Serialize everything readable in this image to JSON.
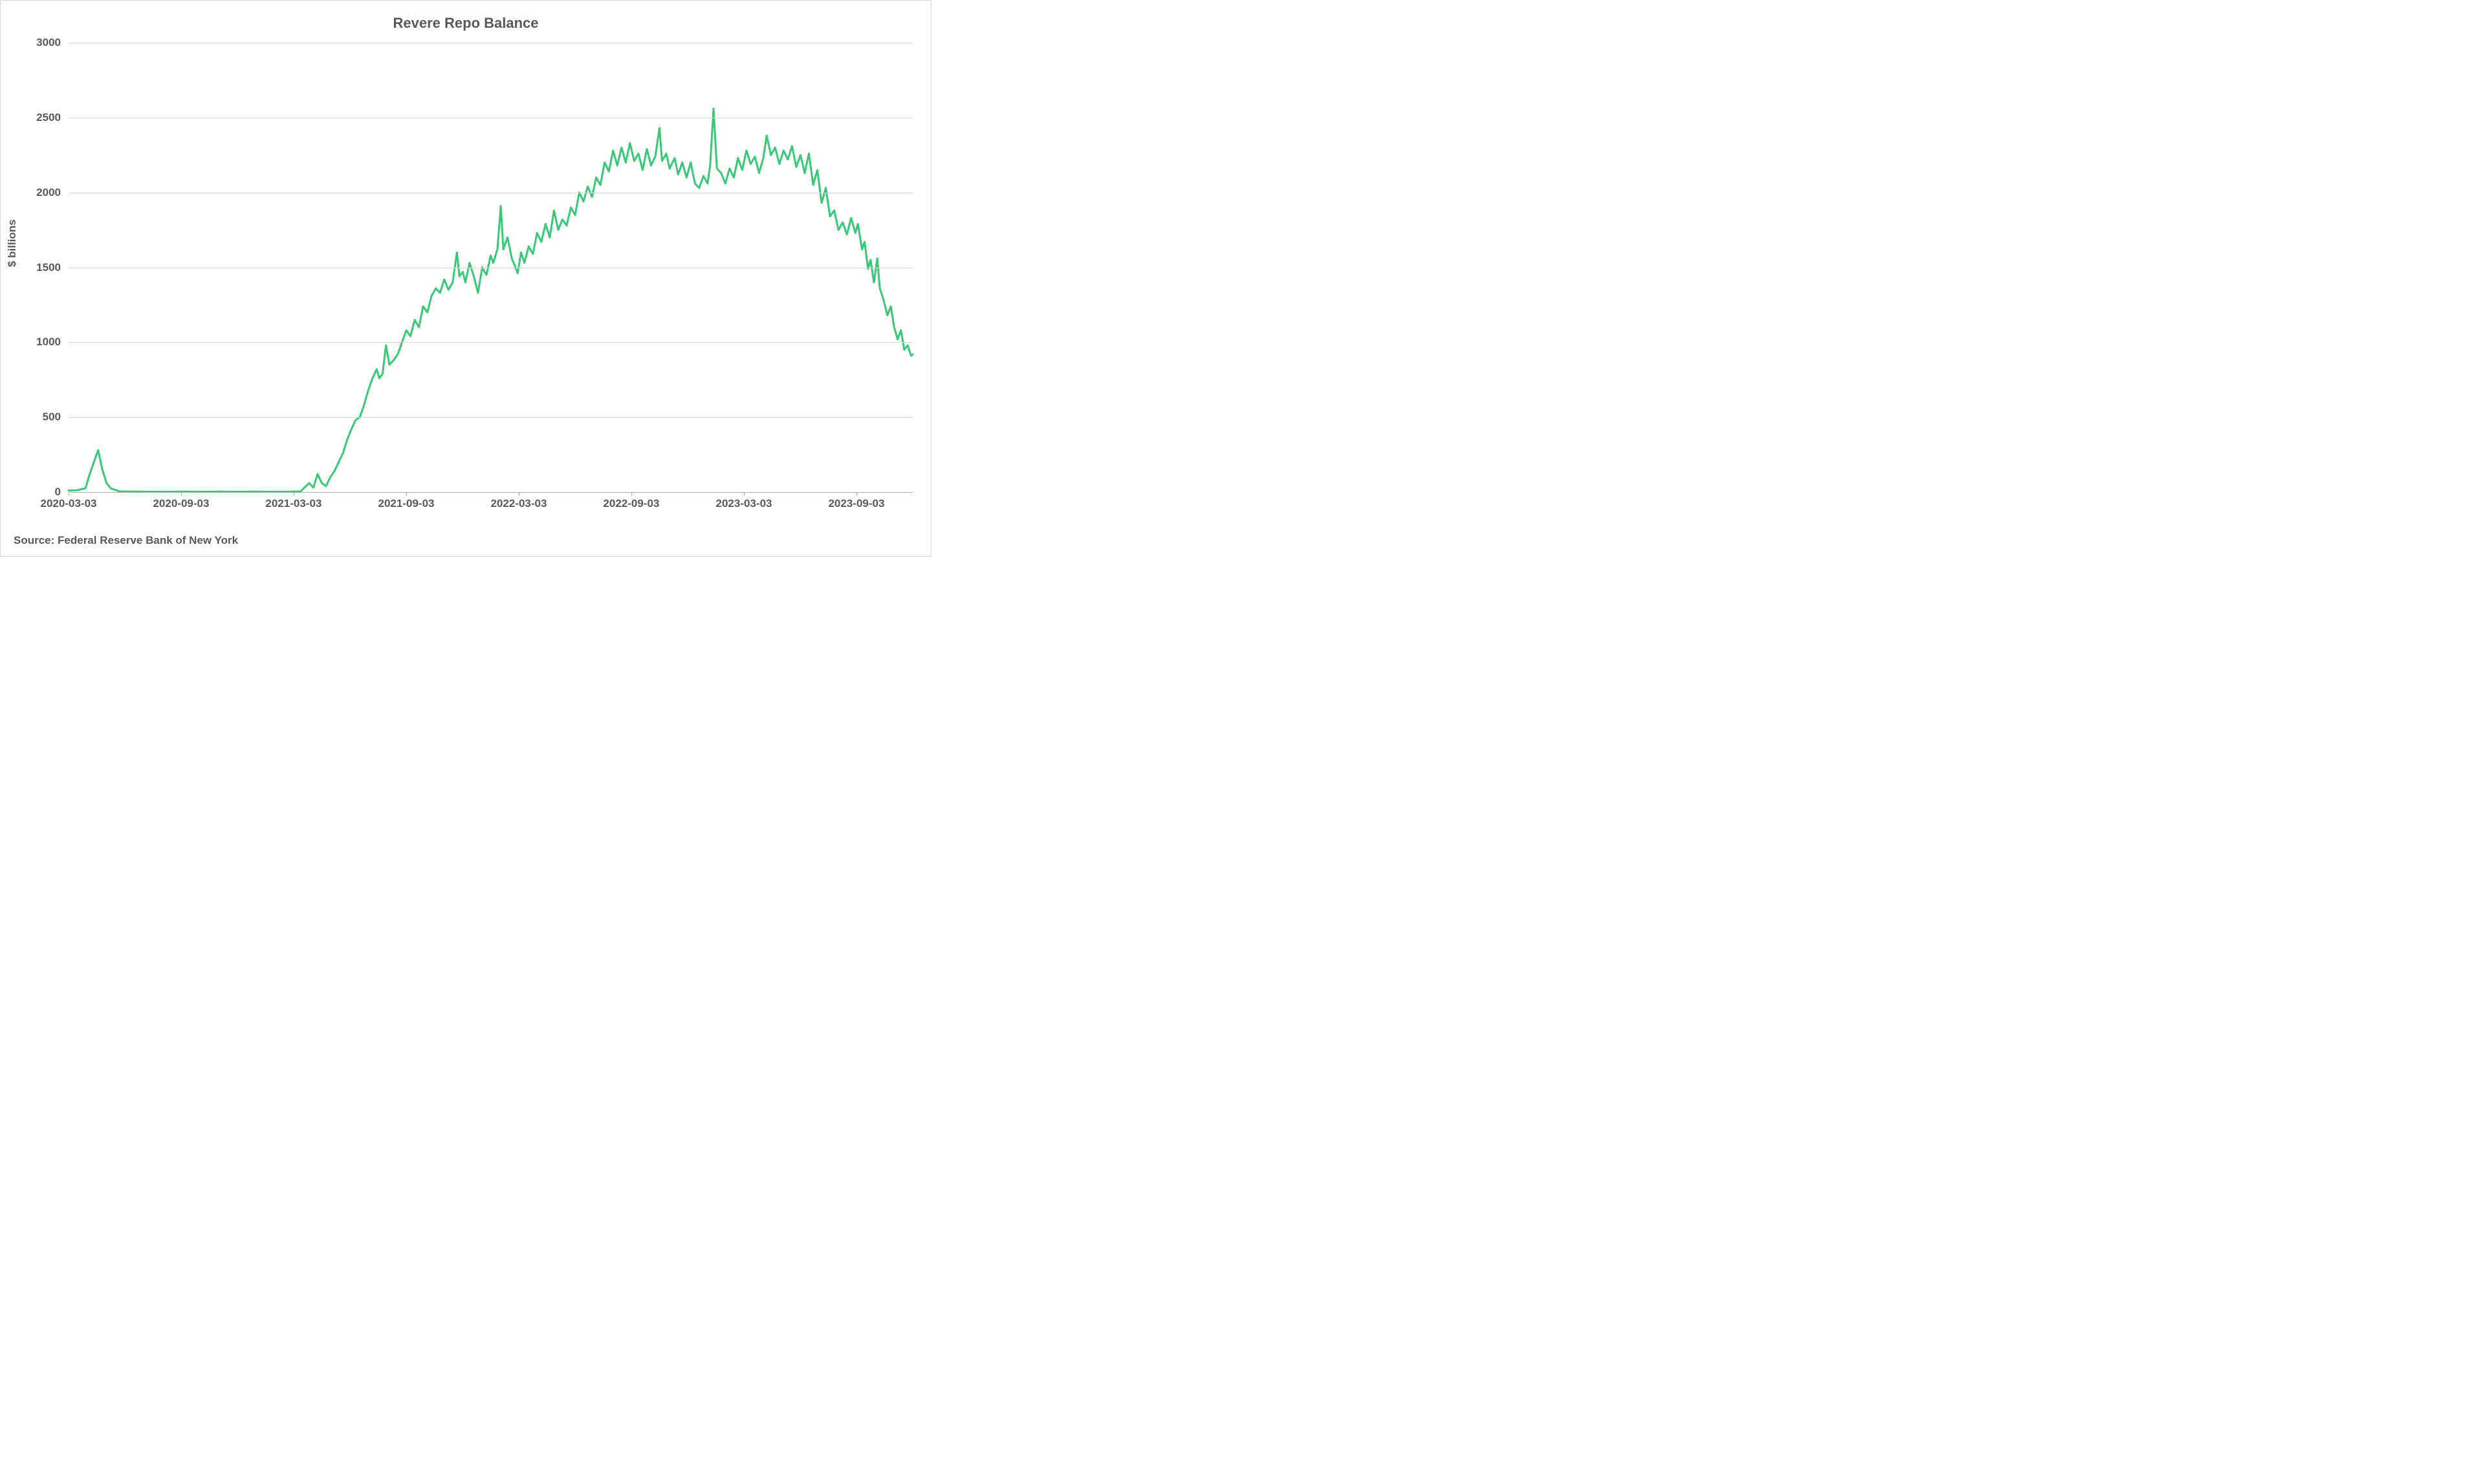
{
  "chart": {
    "type": "line",
    "title": "Revere Repo Balance",
    "title_fontsize": 22,
    "title_color": "#595959",
    "y_axis_label": "$ billions",
    "axis_label_fontsize": 17,
    "axis_label_color": "#595959",
    "source_label": "Source: Federal Reserve Bank of New York",
    "background_color": "#ffffff",
    "border_color": "#d9d9d9",
    "grid_color": "#d9d9d9",
    "axis_line_color": "#b0b0b0",
    "line_color": "#37c978",
    "line_width": 3,
    "ylim": [
      0,
      3000
    ],
    "ytick_step": 500,
    "y_ticks": [
      0,
      500,
      1000,
      1500,
      2000,
      2500,
      3000
    ],
    "x_ticks": [
      {
        "t": 0.0,
        "label": "2020-03-03"
      },
      {
        "t": 0.1333,
        "label": "2020-09-03"
      },
      {
        "t": 0.2666,
        "label": "2021-03-03"
      },
      {
        "t": 0.4,
        "label": "2021-09-03"
      },
      {
        "t": 0.5333,
        "label": "2022-03-03"
      },
      {
        "t": 0.6666,
        "label": "2022-09-03"
      },
      {
        "t": 0.8,
        "label": "2023-03-03"
      },
      {
        "t": 0.9333,
        "label": "2023-09-03"
      }
    ],
    "series": [
      {
        "t": 0.0,
        "v": 10
      },
      {
        "t": 0.01,
        "v": 12
      },
      {
        "t": 0.02,
        "v": 25
      },
      {
        "t": 0.025,
        "v": 120
      },
      {
        "t": 0.03,
        "v": 200
      },
      {
        "t": 0.035,
        "v": 280
      },
      {
        "t": 0.04,
        "v": 150
      },
      {
        "t": 0.045,
        "v": 60
      },
      {
        "t": 0.05,
        "v": 25
      },
      {
        "t": 0.06,
        "v": 5
      },
      {
        "t": 0.08,
        "v": 3
      },
      {
        "t": 0.1,
        "v": 2
      },
      {
        "t": 0.12,
        "v": 2
      },
      {
        "t": 0.14,
        "v": 3
      },
      {
        "t": 0.16,
        "v": 2
      },
      {
        "t": 0.18,
        "v": 3
      },
      {
        "t": 0.2,
        "v": 2
      },
      {
        "t": 0.22,
        "v": 3
      },
      {
        "t": 0.24,
        "v": 2
      },
      {
        "t": 0.26,
        "v": 2
      },
      {
        "t": 0.275,
        "v": 5
      },
      {
        "t": 0.285,
        "v": 60
      },
      {
        "t": 0.29,
        "v": 30
      },
      {
        "t": 0.295,
        "v": 120
      },
      {
        "t": 0.3,
        "v": 60
      },
      {
        "t": 0.305,
        "v": 40
      },
      {
        "t": 0.31,
        "v": 100
      },
      {
        "t": 0.315,
        "v": 140
      },
      {
        "t": 0.32,
        "v": 200
      },
      {
        "t": 0.325,
        "v": 260
      },
      {
        "t": 0.33,
        "v": 350
      },
      {
        "t": 0.335,
        "v": 420
      },
      {
        "t": 0.34,
        "v": 480
      },
      {
        "t": 0.345,
        "v": 500
      },
      {
        "t": 0.35,
        "v": 580
      },
      {
        "t": 0.355,
        "v": 680
      },
      {
        "t": 0.36,
        "v": 760
      },
      {
        "t": 0.365,
        "v": 820
      },
      {
        "t": 0.368,
        "v": 760
      },
      {
        "t": 0.372,
        "v": 790
      },
      {
        "t": 0.376,
        "v": 980
      },
      {
        "t": 0.38,
        "v": 850
      },
      {
        "t": 0.385,
        "v": 880
      },
      {
        "t": 0.39,
        "v": 920
      },
      {
        "t": 0.395,
        "v": 1000
      },
      {
        "t": 0.4,
        "v": 1080
      },
      {
        "t": 0.405,
        "v": 1040
      },
      {
        "t": 0.41,
        "v": 1150
      },
      {
        "t": 0.415,
        "v": 1100
      },
      {
        "t": 0.42,
        "v": 1240
      },
      {
        "t": 0.425,
        "v": 1200
      },
      {
        "t": 0.43,
        "v": 1310
      },
      {
        "t": 0.435,
        "v": 1360
      },
      {
        "t": 0.44,
        "v": 1330
      },
      {
        "t": 0.445,
        "v": 1420
      },
      {
        "t": 0.45,
        "v": 1350
      },
      {
        "t": 0.455,
        "v": 1400
      },
      {
        "t": 0.46,
        "v": 1600
      },
      {
        "t": 0.463,
        "v": 1440
      },
      {
        "t": 0.467,
        "v": 1470
      },
      {
        "t": 0.47,
        "v": 1400
      },
      {
        "t": 0.475,
        "v": 1530
      },
      {
        "t": 0.48,
        "v": 1440
      },
      {
        "t": 0.485,
        "v": 1330
      },
      {
        "t": 0.49,
        "v": 1500
      },
      {
        "t": 0.495,
        "v": 1450
      },
      {
        "t": 0.5,
        "v": 1580
      },
      {
        "t": 0.503,
        "v": 1530
      },
      {
        "t": 0.508,
        "v": 1620
      },
      {
        "t": 0.512,
        "v": 1910
      },
      {
        "t": 0.515,
        "v": 1620
      },
      {
        "t": 0.52,
        "v": 1700
      },
      {
        "t": 0.525,
        "v": 1560
      },
      {
        "t": 0.528,
        "v": 1520
      },
      {
        "t": 0.532,
        "v": 1460
      },
      {
        "t": 0.536,
        "v": 1600
      },
      {
        "t": 0.54,
        "v": 1530
      },
      {
        "t": 0.545,
        "v": 1640
      },
      {
        "t": 0.55,
        "v": 1590
      },
      {
        "t": 0.555,
        "v": 1730
      },
      {
        "t": 0.56,
        "v": 1670
      },
      {
        "t": 0.565,
        "v": 1790
      },
      {
        "t": 0.57,
        "v": 1700
      },
      {
        "t": 0.575,
        "v": 1880
      },
      {
        "t": 0.58,
        "v": 1750
      },
      {
        "t": 0.585,
        "v": 1820
      },
      {
        "t": 0.59,
        "v": 1780
      },
      {
        "t": 0.595,
        "v": 1900
      },
      {
        "t": 0.6,
        "v": 1850
      },
      {
        "t": 0.605,
        "v": 2000
      },
      {
        "t": 0.61,
        "v": 1940
      },
      {
        "t": 0.615,
        "v": 2040
      },
      {
        "t": 0.62,
        "v": 1970
      },
      {
        "t": 0.625,
        "v": 2100
      },
      {
        "t": 0.63,
        "v": 2050
      },
      {
        "t": 0.635,
        "v": 2200
      },
      {
        "t": 0.64,
        "v": 2140
      },
      {
        "t": 0.645,
        "v": 2280
      },
      {
        "t": 0.65,
        "v": 2180
      },
      {
        "t": 0.655,
        "v": 2300
      },
      {
        "t": 0.66,
        "v": 2200
      },
      {
        "t": 0.665,
        "v": 2330
      },
      {
        "t": 0.67,
        "v": 2210
      },
      {
        "t": 0.675,
        "v": 2260
      },
      {
        "t": 0.68,
        "v": 2150
      },
      {
        "t": 0.685,
        "v": 2290
      },
      {
        "t": 0.69,
        "v": 2180
      },
      {
        "t": 0.695,
        "v": 2240
      },
      {
        "t": 0.7,
        "v": 2430
      },
      {
        "t": 0.703,
        "v": 2210
      },
      {
        "t": 0.708,
        "v": 2260
      },
      {
        "t": 0.712,
        "v": 2160
      },
      {
        "t": 0.718,
        "v": 2230
      },
      {
        "t": 0.722,
        "v": 2120
      },
      {
        "t": 0.727,
        "v": 2200
      },
      {
        "t": 0.732,
        "v": 2100
      },
      {
        "t": 0.737,
        "v": 2200
      },
      {
        "t": 0.742,
        "v": 2060
      },
      {
        "t": 0.747,
        "v": 2030
      },
      {
        "t": 0.752,
        "v": 2110
      },
      {
        "t": 0.757,
        "v": 2060
      },
      {
        "t": 0.76,
        "v": 2180
      },
      {
        "t": 0.764,
        "v": 2560
      },
      {
        "t": 0.768,
        "v": 2160
      },
      {
        "t": 0.773,
        "v": 2130
      },
      {
        "t": 0.778,
        "v": 2060
      },
      {
        "t": 0.783,
        "v": 2160
      },
      {
        "t": 0.788,
        "v": 2100
      },
      {
        "t": 0.793,
        "v": 2230
      },
      {
        "t": 0.798,
        "v": 2150
      },
      {
        "t": 0.803,
        "v": 2280
      },
      {
        "t": 0.808,
        "v": 2190
      },
      {
        "t": 0.813,
        "v": 2240
      },
      {
        "t": 0.818,
        "v": 2130
      },
      {
        "t": 0.823,
        "v": 2230
      },
      {
        "t": 0.827,
        "v": 2380
      },
      {
        "t": 0.832,
        "v": 2250
      },
      {
        "t": 0.837,
        "v": 2300
      },
      {
        "t": 0.842,
        "v": 2190
      },
      {
        "t": 0.847,
        "v": 2280
      },
      {
        "t": 0.852,
        "v": 2220
      },
      {
        "t": 0.857,
        "v": 2310
      },
      {
        "t": 0.862,
        "v": 2170
      },
      {
        "t": 0.867,
        "v": 2250
      },
      {
        "t": 0.872,
        "v": 2130
      },
      {
        "t": 0.877,
        "v": 2260
      },
      {
        "t": 0.882,
        "v": 2050
      },
      {
        "t": 0.887,
        "v": 2150
      },
      {
        "t": 0.892,
        "v": 1930
      },
      {
        "t": 0.897,
        "v": 2030
      },
      {
        "t": 0.902,
        "v": 1840
      },
      {
        "t": 0.907,
        "v": 1880
      },
      {
        "t": 0.912,
        "v": 1750
      },
      {
        "t": 0.917,
        "v": 1800
      },
      {
        "t": 0.922,
        "v": 1720
      },
      {
        "t": 0.927,
        "v": 1830
      },
      {
        "t": 0.932,
        "v": 1730
      },
      {
        "t": 0.935,
        "v": 1790
      },
      {
        "t": 0.94,
        "v": 1620
      },
      {
        "t": 0.943,
        "v": 1670
      },
      {
        "t": 0.947,
        "v": 1490
      },
      {
        "t": 0.95,
        "v": 1550
      },
      {
        "t": 0.954,
        "v": 1400
      },
      {
        "t": 0.958,
        "v": 1560
      },
      {
        "t": 0.961,
        "v": 1360
      },
      {
        "t": 0.965,
        "v": 1290
      },
      {
        "t": 0.97,
        "v": 1180
      },
      {
        "t": 0.974,
        "v": 1240
      },
      {
        "t": 0.978,
        "v": 1100
      },
      {
        "t": 0.982,
        "v": 1020
      },
      {
        "t": 0.986,
        "v": 1080
      },
      {
        "t": 0.99,
        "v": 950
      },
      {
        "t": 0.994,
        "v": 980
      },
      {
        "t": 0.998,
        "v": 910
      },
      {
        "t": 1.0,
        "v": 920
      }
    ]
  }
}
